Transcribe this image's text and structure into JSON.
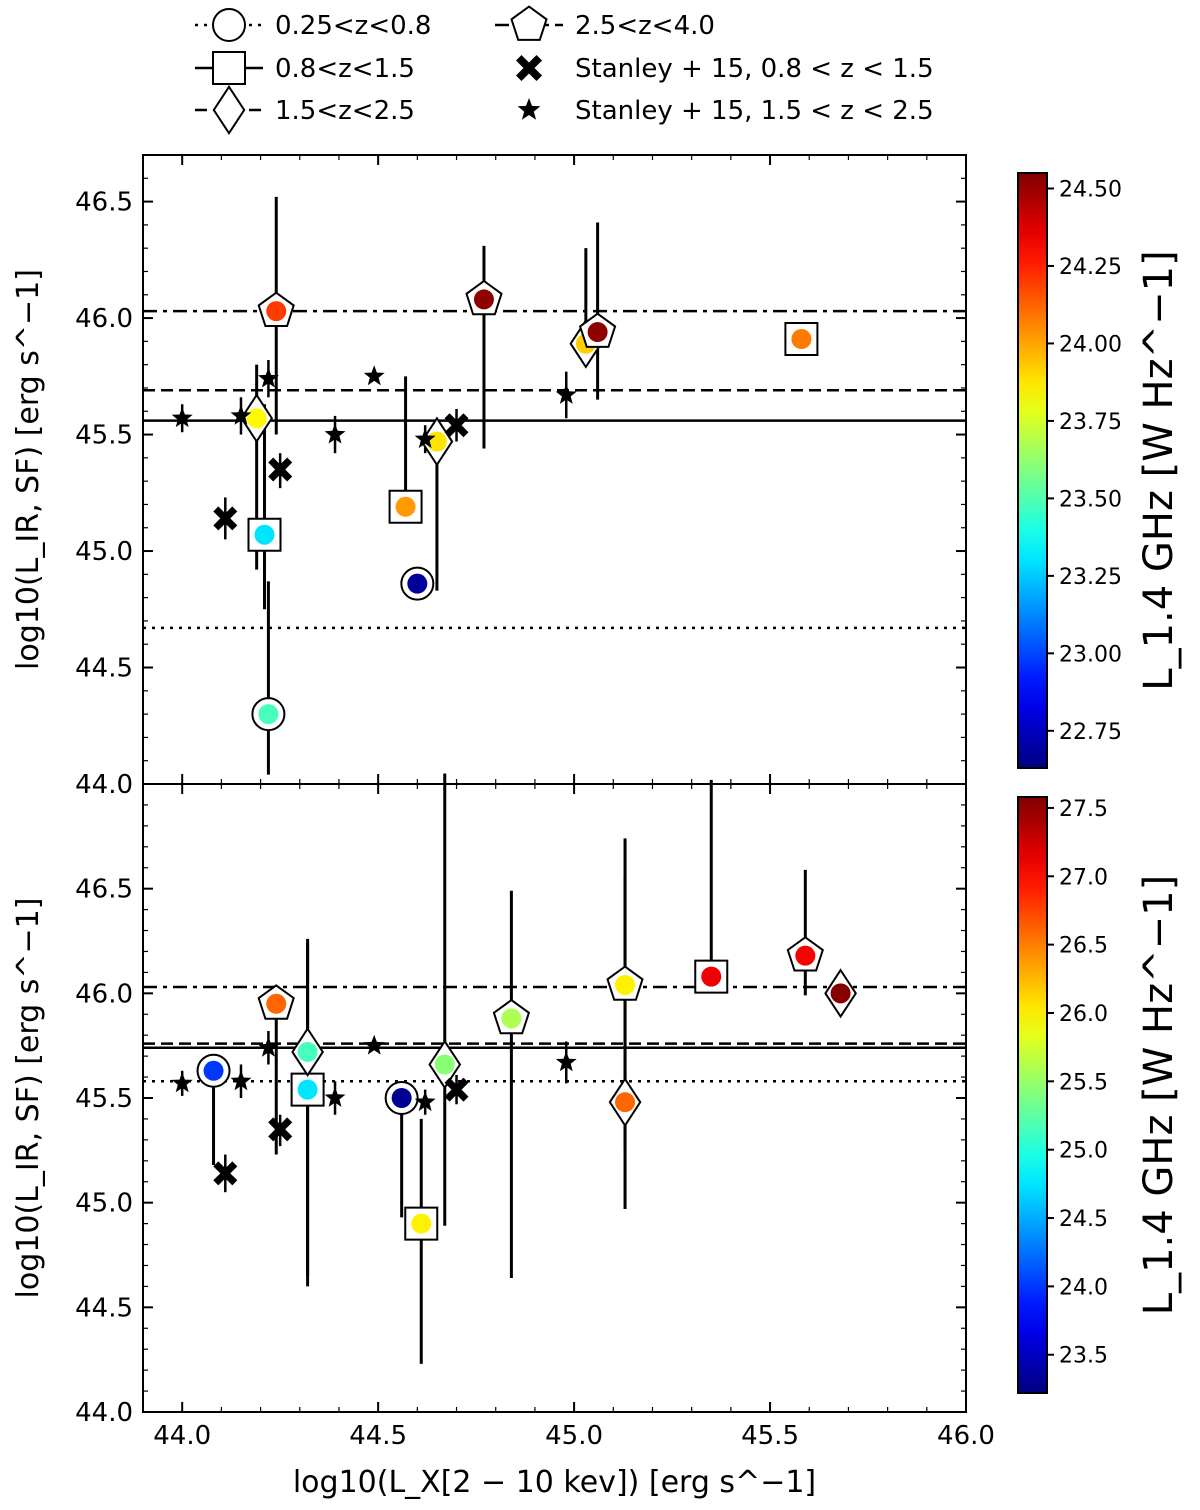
{
  "chart_data": {
    "type": "scatter",
    "legend": {
      "placement": "top-center",
      "entries": [
        {
          "label": "0.25<z<0.8",
          "marker": "circle",
          "line": "dotted"
        },
        {
          "label": "2.5<z<4.0",
          "marker": "pentagon",
          "line": "dashdot"
        },
        {
          "label": "0.8<z<1.5",
          "marker": "square",
          "line": "solid"
        },
        {
          "label": "Stanley + 15, 0.8 < z < 1.5",
          "marker": "x",
          "line": "none"
        },
        {
          "label": "1.5<z<2.5",
          "marker": "diamond",
          "line": "dashed"
        },
        {
          "label": "Stanley + 15, 1.5 < z < 2.5",
          "marker": "star",
          "line": "none"
        }
      ]
    },
    "xlabel": "log10(L_X[2 − 10 kev]) [erg s^−1]",
    "x_axis": {
      "range": [
        43.9,
        46.0
      ],
      "ticks": [
        "44.0",
        "44.5",
        "45.0",
        "45.5",
        "46.0"
      ],
      "tick_values": [
        44.0,
        44.5,
        45.0,
        45.5,
        46.0
      ]
    },
    "panels": [
      {
        "name": "top",
        "ylabel": "log10(L_IR, SF) [erg s^−1]",
        "ylim": [
          44.0,
          46.7
        ],
        "yticks": [
          "44.0",
          "44.5",
          "45.0",
          "45.5",
          "46.0",
          "46.5"
        ],
        "ytick_values": [
          44.0,
          44.5,
          45.0,
          45.5,
          46.0,
          46.5
        ],
        "hlines": [
          {
            "y": 44.67,
            "style": "dotted",
            "label": "0.25<z<0.8"
          },
          {
            "y": 45.56,
            "style": "solid",
            "label": "0.8<z<1.5"
          },
          {
            "y": 45.69,
            "style": "dashed",
            "label": "1.5<z<2.5"
          },
          {
            "y": 46.03,
            "style": "dashdot",
            "label": "2.5<z<4.0"
          }
        ],
        "colorbar": {
          "label": "L_1.4 GHz [W Hz^−1]",
          "range": [
            22.63,
            24.55
          ],
          "ticks": [
            "22.75",
            "23.00",
            "23.25",
            "23.50",
            "23.75",
            "24.00",
            "24.25",
            "24.50"
          ],
          "tick_values": [
            22.75,
            23.0,
            23.25,
            23.5,
            23.75,
            24.0,
            24.25,
            24.5
          ]
        },
        "points": [
          {
            "x": 44.22,
            "y": 44.3,
            "marker": "circle",
            "c": 23.48,
            "err": [
              44.04,
              44.87
            ]
          },
          {
            "x": 44.6,
            "y": 44.86,
            "marker": "circle",
            "c": 22.68,
            "err": null
          },
          {
            "x": 44.21,
            "y": 45.07,
            "marker": "square",
            "c": 23.3,
            "err": [
              44.75,
              45.63
            ]
          },
          {
            "x": 44.57,
            "y": 45.19,
            "marker": "square",
            "c": 24.02,
            "err": [
              45.19,
              45.75
            ]
          },
          {
            "x": 45.58,
            "y": 45.91,
            "marker": "square",
            "c": 24.08,
            "err": null
          },
          {
            "x": 44.19,
            "y": 45.57,
            "marker": "diamond",
            "c": 23.84,
            "err": [
              44.92,
              45.8
            ]
          },
          {
            "x": 44.65,
            "y": 45.47,
            "marker": "diamond",
            "c": 23.88,
            "err": [
              44.83,
              45.53
            ]
          },
          {
            "x": 45.03,
            "y": 45.89,
            "marker": "diamond",
            "c": 23.92,
            "err": [
              45.89,
              46.3
            ]
          },
          {
            "x": 44.24,
            "y": 46.03,
            "marker": "pentagon",
            "c": 24.2,
            "err": [
              45.5,
              46.52
            ]
          },
          {
            "x": 44.77,
            "y": 46.08,
            "marker": "pentagon",
            "c": 24.52,
            "err": [
              45.44,
              46.31
            ]
          },
          {
            "x": 45.06,
            "y": 45.94,
            "marker": "pentagon",
            "c": 24.52,
            "err": [
              45.65,
              46.41
            ]
          }
        ],
        "stanley_x": [
          {
            "x": 44.11,
            "y": 45.14,
            "err": [
              45.05,
              45.23
            ]
          },
          {
            "x": 44.25,
            "y": 45.35,
            "err": [
              45.27,
              45.42
            ]
          },
          {
            "x": 44.7,
            "y": 45.54,
            "err": [
              45.47,
              45.61
            ]
          }
        ],
        "stanley_star": [
          {
            "x": 44.0,
            "y": 45.57,
            "err": [
              45.51,
              45.63
            ]
          },
          {
            "x": 44.15,
            "y": 45.58,
            "err": [
              45.5,
              45.66
            ]
          },
          {
            "x": 44.22,
            "y": 45.74,
            "err": [
              45.66,
              45.82
            ]
          },
          {
            "x": 44.39,
            "y": 45.5,
            "err": [
              45.42,
              45.58
            ]
          },
          {
            "x": 44.49,
            "y": 45.75,
            "err": null
          },
          {
            "x": 44.62,
            "y": 45.48,
            "err": [
              45.42,
              45.54
            ]
          },
          {
            "x": 44.98,
            "y": 45.67,
            "err": [
              45.57,
              45.77
            ]
          }
        ]
      },
      {
        "name": "bottom",
        "ylabel": "log10(L_IR, SF) [erg s^−1]",
        "ylim": [
          44.0,
          47.0
        ],
        "yticks": [
          "44.0",
          "44.5",
          "45.0",
          "45.5",
          "46.0",
          "46.5"
        ],
        "ytick_values": [
          44.0,
          44.5,
          45.0,
          45.5,
          46.0,
          46.5
        ],
        "hlines": [
          {
            "y": 45.58,
            "style": "dotted",
            "label": "0.25<z<0.8"
          },
          {
            "y": 45.74,
            "style": "solid",
            "label": "0.8<z<1.5"
          },
          {
            "y": 45.76,
            "style": "dashed",
            "label": "1.5<z<2.5"
          },
          {
            "y": 46.03,
            "style": "dashdot",
            "label": "2.5<z<4.0"
          }
        ],
        "colorbar": {
          "label": "L_1.4 GHz [W Hz^−1]",
          "range": [
            23.22,
            27.58
          ],
          "ticks": [
            "23.5",
            "24.0",
            "24.5",
            "25.0",
            "25.5",
            "26.0",
            "26.5",
            "27.0",
            "27.5"
          ],
          "tick_values": [
            23.5,
            24.0,
            24.5,
            25.0,
            25.5,
            26.0,
            26.5,
            27.0,
            27.5
          ]
        },
        "points": [
          {
            "x": 44.08,
            "y": 45.63,
            "marker": "circle",
            "c": 24.0,
            "err": [
              45.18,
              45.63
            ]
          },
          {
            "x": 44.56,
            "y": 45.5,
            "marker": "circle",
            "c": 23.3,
            "err": [
              44.93,
              45.5
            ]
          },
          {
            "x": 44.32,
            "y": 45.54,
            "marker": "square",
            "c": 24.75,
            "err": [
              44.65,
              46.24
            ]
          },
          {
            "x": 44.61,
            "y": 44.9,
            "marker": "square",
            "c": 26.0,
            "err": [
              44.23,
              45.4
            ]
          },
          {
            "x": 45.35,
            "y": 46.08,
            "marker": "square",
            "c": 27.1,
            "err": [
              46.08,
              47.02
            ]
          },
          {
            "x": 44.32,
            "y": 45.72,
            "marker": "diamond",
            "c": 25.15,
            "err": [
              44.6,
              46.26
            ]
          },
          {
            "x": 44.67,
            "y": 45.66,
            "marker": "diamond",
            "c": 25.45,
            "err": [
              44.89,
              47.05
            ]
          },
          {
            "x": 45.13,
            "y": 45.48,
            "marker": "diamond",
            "c": 26.6,
            "err": [
              44.97,
              46.56
            ]
          },
          {
            "x": 44.24,
            "y": 45.95,
            "marker": "pentagon",
            "c": 26.6,
            "err": [
              45.23,
              45.95
            ]
          },
          {
            "x": 44.84,
            "y": 45.88,
            "marker": "pentagon",
            "c": 25.6,
            "err": [
              44.64,
              46.49
            ]
          },
          {
            "x": 45.13,
            "y": 46.04,
            "marker": "pentagon",
            "c": 26.0,
            "err": [
              45.26,
              46.74
            ]
          },
          {
            "x": 45.59,
            "y": 46.18,
            "marker": "pentagon",
            "c": 27.05,
            "err": [
              45.99,
              46.59
            ]
          },
          {
            "x": 45.68,
            "y": 46.0,
            "marker": "diamond",
            "c": 27.55,
            "err": null
          }
        ],
        "stanley_x": [
          {
            "x": 44.11,
            "y": 45.14,
            "err": [
              45.05,
              45.23
            ]
          },
          {
            "x": 44.25,
            "y": 45.35,
            "err": [
              45.27,
              45.42
            ]
          },
          {
            "x": 44.7,
            "y": 45.54,
            "err": [
              45.47,
              45.61
            ]
          }
        ],
        "stanley_star": [
          {
            "x": 44.0,
            "y": 45.57,
            "err": [
              45.51,
              45.63
            ]
          },
          {
            "x": 44.15,
            "y": 45.58,
            "err": [
              45.5,
              45.66
            ]
          },
          {
            "x": 44.22,
            "y": 45.74,
            "err": [
              45.66,
              45.82
            ]
          },
          {
            "x": 44.39,
            "y": 45.5,
            "err": [
              45.42,
              45.58
            ]
          },
          {
            "x": 44.49,
            "y": 45.75,
            "err": null
          },
          {
            "x": 44.62,
            "y": 45.48,
            "err": [
              45.42,
              45.54
            ]
          },
          {
            "x": 44.98,
            "y": 45.67,
            "err": [
              45.57,
              45.77
            ]
          }
        ]
      }
    ]
  }
}
